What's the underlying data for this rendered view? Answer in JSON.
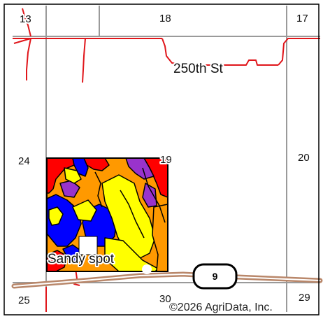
{
  "map": {
    "section_numbers": {
      "nw": "13",
      "n": "18",
      "ne": "17",
      "w": "24",
      "field_corner": "19",
      "e": "20",
      "sw": "25",
      "s": "30",
      "se": "29"
    },
    "road_label": "250th St",
    "highway_shield": "9",
    "field_label": "Sandy spot",
    "copyright": "©2026 AgriData, Inc.",
    "colors": {
      "section_line": "#9a9a9a",
      "local_road": "#e0161b",
      "highway_outer": "#b9876a",
      "soil_red": "#ff0000",
      "soil_orange": "#ff9900",
      "soil_yellow": "#ffff00",
      "soil_blue": "#0000ff",
      "soil_purple": "#9933cc",
      "soil_boundary": "#000000"
    },
    "soil_classes": [
      "red",
      "orange",
      "yellow",
      "blue",
      "purple"
    ]
  }
}
